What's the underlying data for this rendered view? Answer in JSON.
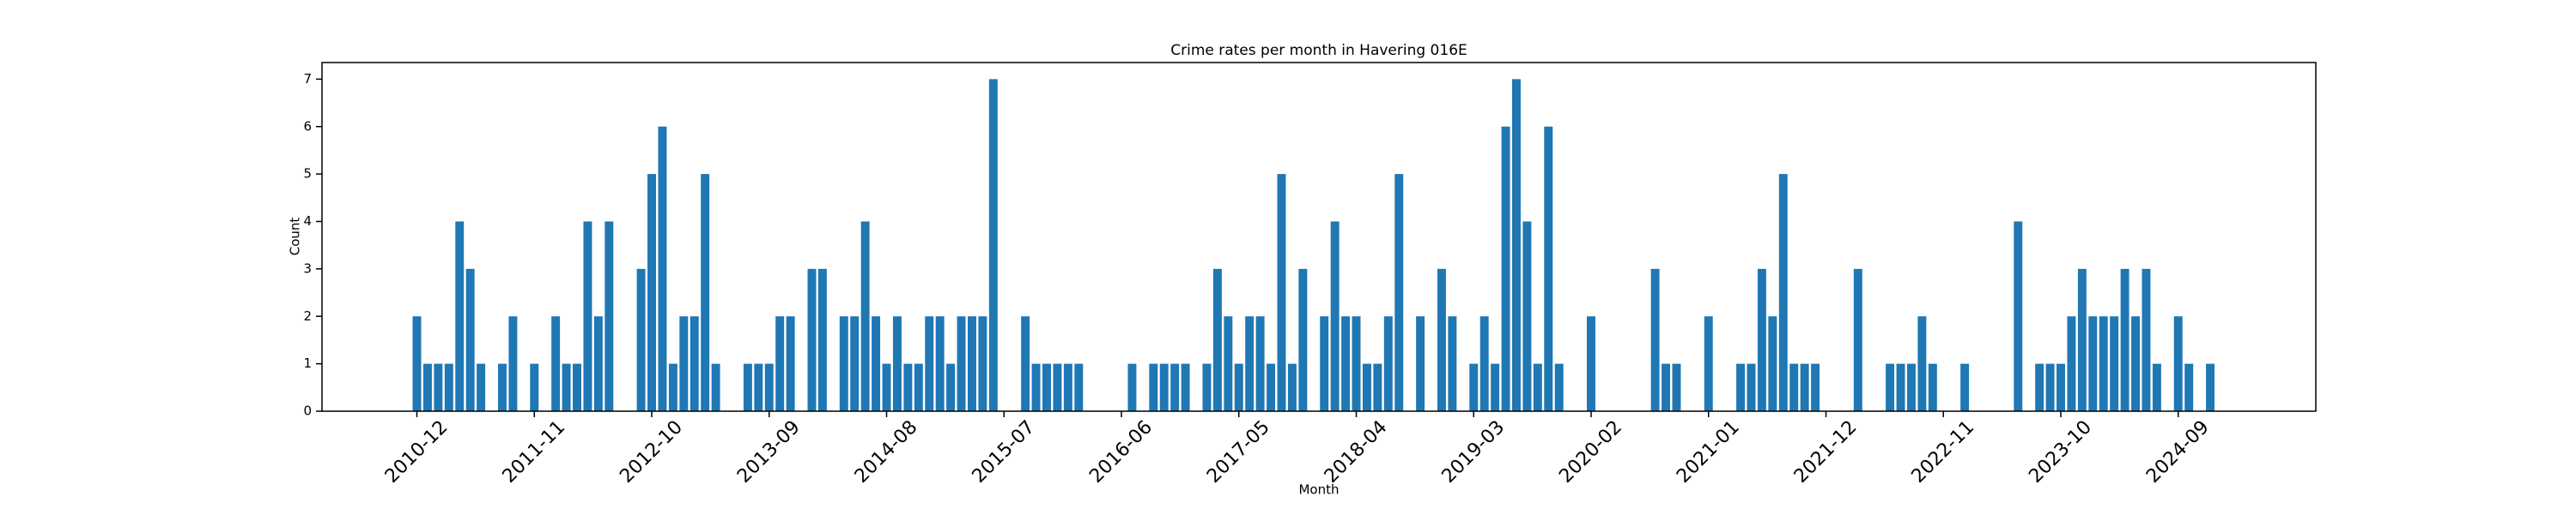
{
  "chart_data": {
    "type": "bar",
    "title": "Crime rates per month in Havering 016E",
    "xlabel": "Month",
    "ylabel": "Count",
    "color": "#1f77b4",
    "categories": [
      "2010-12",
      null,
      null,
      null,
      null,
      null,
      null,
      null,
      null,
      null,
      null,
      "2011-11",
      null,
      null,
      null,
      null,
      null,
      null,
      null,
      null,
      null,
      null,
      "2012-10",
      null,
      null,
      null,
      null,
      null,
      null,
      null,
      null,
      null,
      null,
      "2013-09",
      null,
      null,
      null,
      null,
      null,
      null,
      null,
      null,
      null,
      null,
      "2014-08",
      null,
      null,
      null,
      null,
      null,
      null,
      null,
      null,
      null,
      null,
      "2015-07",
      null,
      null,
      null,
      null,
      null,
      null,
      null,
      null,
      null,
      null,
      "2016-06",
      null,
      null,
      null,
      null,
      null,
      null,
      null,
      null,
      null,
      null,
      "2017-05",
      null,
      null,
      null,
      null,
      null,
      null,
      null,
      null,
      null,
      null,
      "2018-04",
      null,
      null,
      null,
      null,
      null,
      null,
      null,
      null,
      null,
      null,
      "2019-03",
      null,
      null,
      null,
      null,
      null,
      null,
      null,
      null,
      null,
      null,
      "2020-02",
      null,
      null,
      null,
      null,
      null,
      null,
      null,
      null,
      null,
      null,
      "2021-01",
      null,
      null,
      null,
      null,
      null,
      null,
      null,
      null,
      null,
      null,
      "2021-12",
      null,
      null,
      null,
      null,
      null,
      null,
      null,
      null,
      null,
      null,
      "2022-11",
      null,
      null,
      null,
      null,
      null,
      null,
      null,
      null,
      null,
      null,
      "2023-10",
      null,
      null,
      null,
      null,
      null,
      null,
      null,
      null,
      null,
      null,
      "2024-09",
      null,
      null,
      null,
      null
    ],
    "values": [
      2,
      1,
      1,
      1,
      4,
      3,
      1,
      0,
      1,
      2,
      0,
      1,
      0,
      2,
      1,
      1,
      4,
      2,
      4,
      0,
      0,
      3,
      5,
      6,
      1,
      2,
      2,
      5,
      1,
      0,
      0,
      1,
      1,
      1,
      2,
      2,
      0,
      3,
      3,
      0,
      2,
      2,
      4,
      2,
      1,
      2,
      1,
      1,
      2,
      2,
      1,
      2,
      2,
      2,
      7,
      0,
      0,
      2,
      1,
      1,
      1,
      1,
      1,
      0,
      0,
      0,
      0,
      1,
      0,
      1,
      1,
      1,
      1,
      0,
      1,
      3,
      2,
      1,
      2,
      2,
      1,
      5,
      1,
      3,
      0,
      2,
      4,
      2,
      2,
      1,
      1,
      2,
      5,
      0,
      2,
      0,
      3,
      2,
      0,
      1,
      2,
      1,
      6,
      7,
      4,
      1,
      6,
      1,
      0,
      0,
      2,
      0,
      0,
      0,
      0,
      0,
      3,
      1,
      1,
      0,
      0,
      2,
      0,
      0,
      1,
      1,
      3,
      2,
      5,
      1,
      1,
      1,
      0,
      0,
      0,
      3,
      0,
      0,
      1,
      1,
      1,
      2,
      1,
      0,
      0,
      1,
      0,
      0,
      0,
      0,
      4,
      0,
      1,
      1,
      1,
      2,
      3,
      2,
      2,
      2,
      3,
      2,
      3,
      1,
      0,
      2,
      1,
      0,
      1,
      0
    ],
    "ylim": [
      0,
      7.35
    ],
    "yticks": [
      0,
      1,
      2,
      3,
      4,
      5,
      6,
      7
    ]
  }
}
